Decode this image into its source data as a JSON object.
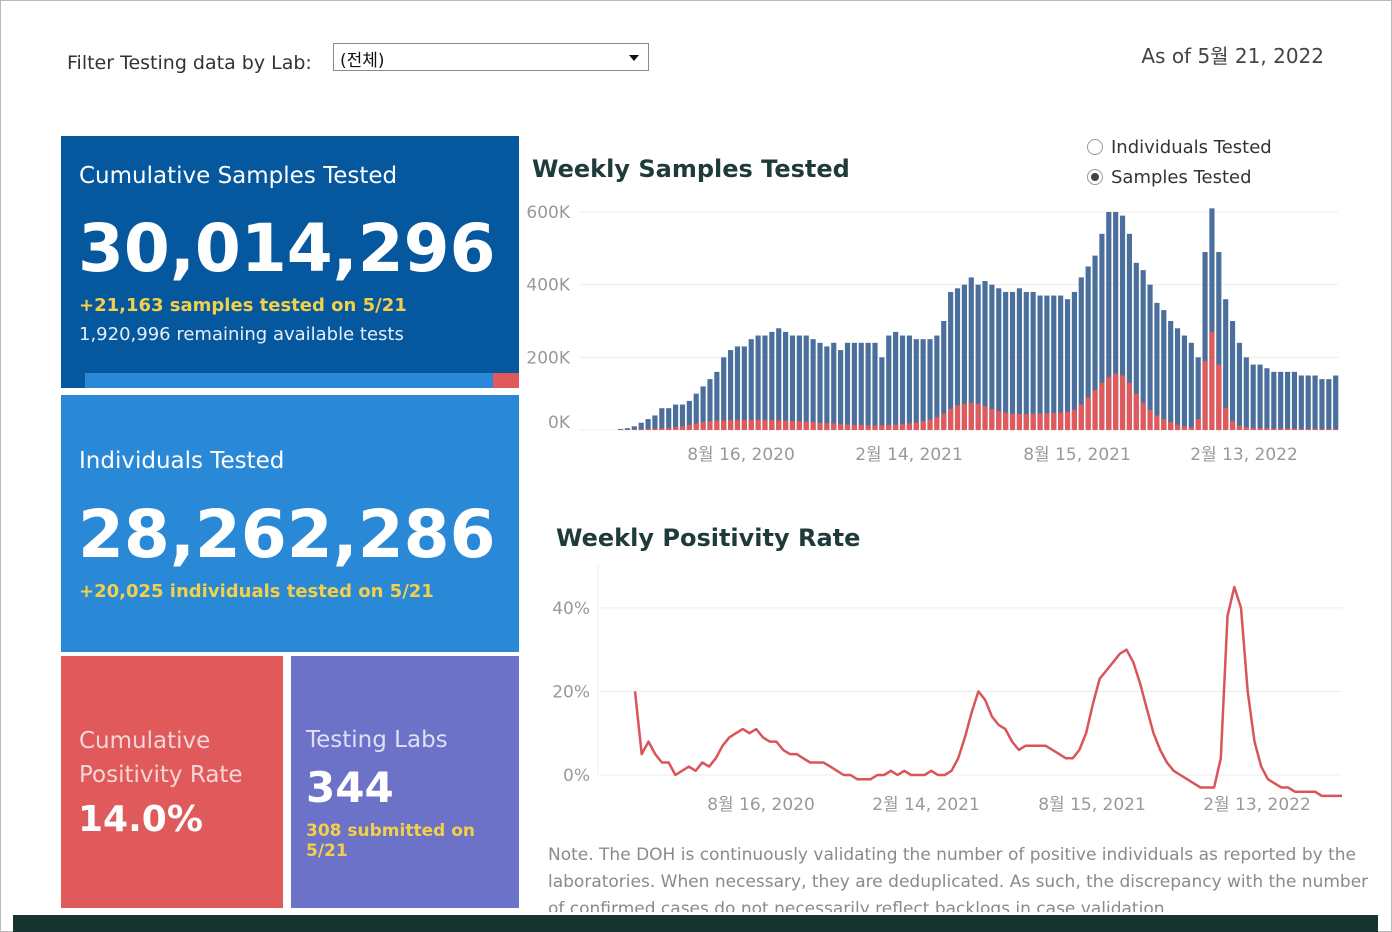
{
  "filter": {
    "label": "Filter Testing data by Lab:",
    "selected": "(전체)"
  },
  "as_of": "As of 5월 21, 2022",
  "cards": {
    "samples": {
      "title": "Cumulative Samples Tested",
      "value": "30,014,296",
      "highlight": "+21,163 samples tested on 5/21",
      "sub": "1,920,996 remaining available tests",
      "progress_fraction": 0.94
    },
    "individuals": {
      "title": "Individuals Tested",
      "value": "28,262,286",
      "highlight": "+20,025  individuals  tested on 5/21"
    },
    "positivity": {
      "title_line1": "Cumulative",
      "title_line2": "Positivity Rate",
      "value": "14.0%"
    },
    "labs": {
      "title": "Testing Labs",
      "value": "344",
      "highlight": "308 submitted on 5/21"
    }
  },
  "toggle": {
    "options": [
      "Individuals Tested",
      "Samples Tested"
    ],
    "selected": "Samples Tested"
  },
  "note": "Note. The DOH is continuously validating the number of positive individuals as reported by the laboratories. When necessary, they are deduplicated. As such, the discrepancy with the number of confirmed cases do not necessarily reflect backlogs in case validation.",
  "colors": {
    "navy": "#05579e",
    "blue": "#2a89d7",
    "red": "#e05a5c",
    "purple": "#6b72c8",
    "bar_blue": "#4a6f9c",
    "bar_red": "#e05a5c",
    "yellow": "#f2d04a"
  },
  "chart_data": [
    {
      "type": "bar",
      "title": "Weekly Samples Tested",
      "y_tick_labels": [
        "0K",
        "200K",
        "400K",
        "600K"
      ],
      "x_tick_labels": [
        "8월 16, 2020",
        "2월 14, 2021",
        "8월 15, 2021",
        "2월 13, 2022"
      ],
      "ylim": [
        0,
        600000
      ],
      "grid": true,
      "series": [
        {
          "values": [
            3000,
            5000,
            10000,
            20000,
            30000,
            40000,
            60000,
            60000,
            70000,
            70000,
            80000,
            100000,
            120000,
            140000,
            160000,
            200000,
            220000,
            230000,
            230000,
            250000,
            260000,
            260000,
            270000,
            280000,
            270000,
            260000,
            260000,
            260000,
            250000,
            240000,
            230000,
            240000,
            220000,
            240000,
            240000,
            240000,
            240000,
            240000,
            200000,
            260000,
            270000,
            260000,
            260000,
            250000,
            250000,
            250000,
            260000,
            300000,
            380000,
            390000,
            400000,
            420000,
            400000,
            410000,
            400000,
            390000,
            380000,
            380000,
            390000,
            380000,
            380000,
            370000,
            370000,
            370000,
            370000,
            360000,
            380000,
            420000,
            450000,
            480000,
            540000,
            600000,
            600000,
            590000,
            540000,
            460000,
            440000,
            400000,
            350000,
            330000,
            300000,
            280000,
            260000,
            240000,
            200000,
            490000,
            610000,
            490000,
            360000,
            300000,
            240000,
            200000,
            180000,
            180000,
            170000,
            160000,
            160000,
            160000,
            160000,
            150000,
            150000,
            150000,
            140000,
            140000,
            150000
          ]
        },
        {
          "values": [
            1000,
            1000,
            2000,
            2000,
            3000,
            4000,
            5000,
            6000,
            8000,
            10000,
            14000,
            18000,
            22000,
            24000,
            26000,
            26000,
            27000,
            27000,
            28000,
            28000,
            28000,
            27000,
            27000,
            26000,
            26000,
            25000,
            24000,
            23000,
            22000,
            20000,
            19000,
            18000,
            16000,
            15000,
            14000,
            14000,
            13000,
            12000,
            13000,
            14000,
            15000,
            16000,
            18000,
            20000,
            24000,
            28000,
            35000,
            45000,
            58000,
            68000,
            72000,
            75000,
            72000,
            66000,
            58000,
            52000,
            48000,
            45000,
            44000,
            44000,
            45000,
            46000,
            46000,
            47000,
            48000,
            50000,
            56000,
            70000,
            90000,
            110000,
            130000,
            145000,
            155000,
            150000,
            130000,
            100000,
            75000,
            55000,
            40000,
            30000,
            22000,
            15000,
            10000,
            8000,
            30000,
            190000,
            270000,
            180000,
            60000,
            25000,
            12000,
            8000,
            6000,
            5000,
            5000,
            4000,
            4000,
            4000,
            4000,
            3000,
            3000,
            3000,
            3000,
            3000,
            3000
          ]
        }
      ]
    },
    {
      "type": "line",
      "title": "Weekly Positivity Rate",
      "y_tick_labels": [
        "0%",
        "20%",
        "40%"
      ],
      "x_tick_labels": [
        "8월 16, 2020",
        "2월 14, 2021",
        "8월 15, 2021",
        "2월 13, 2022"
      ],
      "ylim": [
        0,
        45
      ],
      "grid": true,
      "series": [
        {
          "values": [
            20,
            5,
            8,
            5,
            3,
            3,
            0,
            1,
            2,
            1,
            3,
            2,
            4,
            7,
            9,
            10,
            11,
            10,
            11,
            9,
            8,
            8,
            6,
            5,
            5,
            4,
            3,
            3,
            3,
            2,
            1,
            0,
            0,
            -1,
            -1,
            -1,
            0,
            0,
            1,
            0,
            1,
            0,
            0,
            0,
            1,
            0,
            0,
            1,
            4,
            9,
            15,
            20,
            18,
            14,
            12,
            11,
            8,
            6,
            7,
            7,
            7,
            7,
            6,
            5,
            4,
            4,
            6,
            10,
            17,
            23,
            25,
            27,
            29,
            30,
            27,
            22,
            16,
            10,
            6,
            3,
            1,
            0,
            -1,
            -2,
            -3,
            -3,
            -3,
            4,
            38,
            45,
            40,
            20,
            8,
            2,
            -1,
            -2,
            -3,
            -3,
            -4,
            -4,
            -4,
            -4,
            -5,
            -5,
            -5,
            -5
          ]
        }
      ]
    }
  ]
}
